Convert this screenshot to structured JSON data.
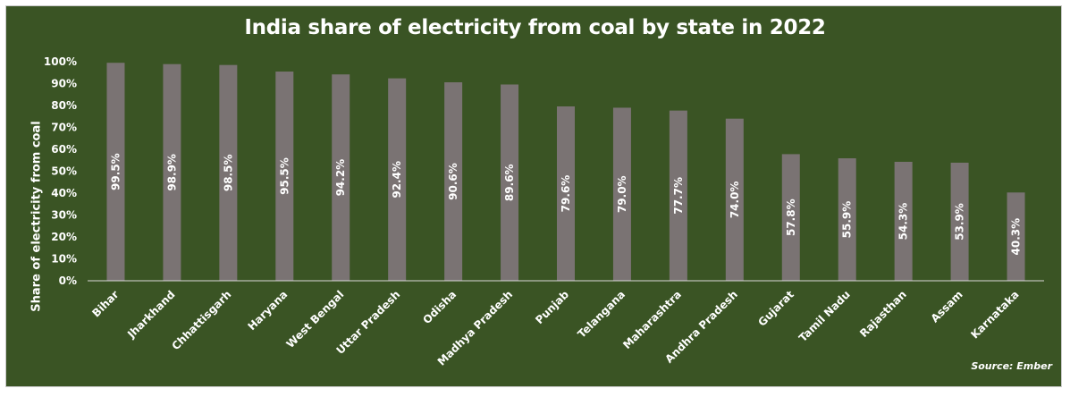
{
  "chart_data": {
    "type": "bar",
    "title": "India share of electricity from coal by state in 2022",
    "xlabel": "",
    "ylabel": "Share of electricity from coal",
    "source": "Source: Ember",
    "categories": [
      "Bihar",
      "Jharkhand",
      "Chhattisgarh",
      "Haryana",
      "West Bengal",
      "Uttar Pradesh",
      "Odisha",
      "Madhya Pradesh",
      "Punjab",
      "Telangana",
      "Maharashtra",
      "Andhra Pradesh",
      "Gujarat",
      "Tamil Nadu",
      "Rajasthan",
      "Assam",
      "Karnataka"
    ],
    "values": [
      99.5,
      98.9,
      98.5,
      95.5,
      94.2,
      92.4,
      90.6,
      89.6,
      79.6,
      79.0,
      77.7,
      74.0,
      57.8,
      55.9,
      54.3,
      53.9,
      40.3
    ],
    "data_labels": [
      "99.5%",
      "98.9%",
      "98.5%",
      "95.5%",
      "94.2%",
      "92.4%",
      "90.6%",
      "89.6%",
      "79.6%",
      "79.0%",
      "77.7%",
      "74.0%",
      "57.8%",
      "55.9%",
      "54.3%",
      "53.9%",
      "40.3%"
    ],
    "ylim": [
      0,
      100
    ],
    "yticks": [
      0,
      10,
      20,
      30,
      40,
      50,
      60,
      70,
      80,
      90,
      100
    ],
    "ytick_labels": [
      "0%",
      "10%",
      "20%",
      "30%",
      "40%",
      "50%",
      "60%",
      "70%",
      "80%",
      "90%",
      "100%"
    ],
    "grid": false,
    "legend": "none",
    "colors": {
      "background": "#3a5424",
      "bar": "#7a7373",
      "text": "#ffffff",
      "axis": "#d9d9d9"
    }
  }
}
